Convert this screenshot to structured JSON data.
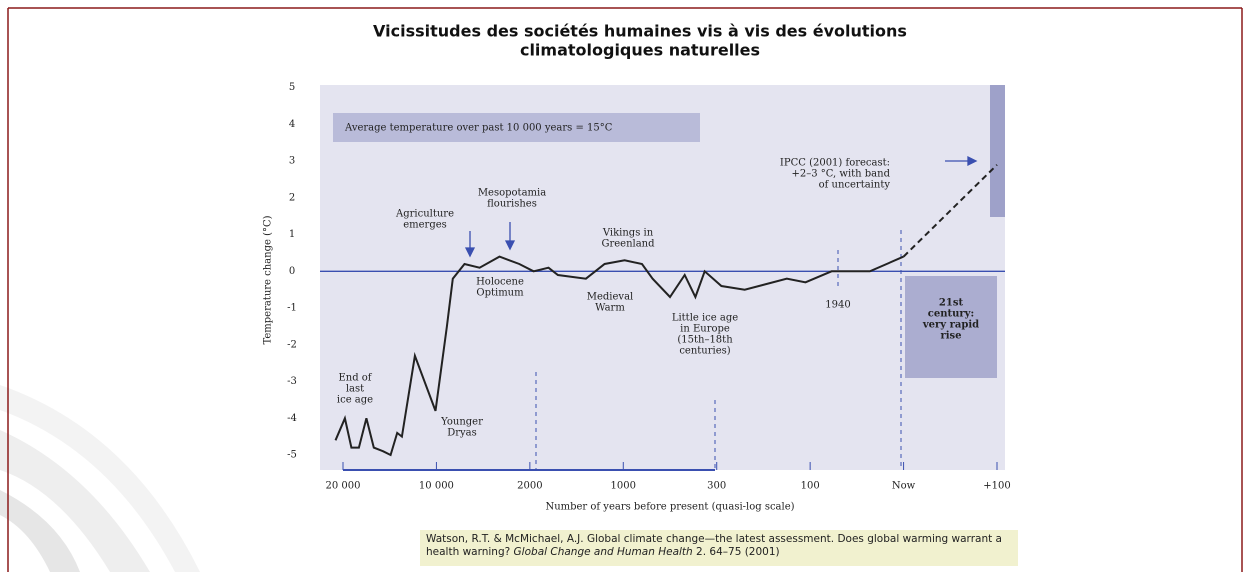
{
  "chart_data": {
    "type": "line",
    "title": [
      "Vicissitudes des sociétés humaines vis à vis des évolutions",
      "climatologiques naturelles"
    ],
    "y_label": "Temperature change (°C)",
    "x_label": "Number of years before present (quasi-log scale)",
    "xticks": [
      {
        "value": 20000,
        "label": "20 000"
      },
      {
        "value": 10000,
        "label": "10 000"
      },
      2000,
      1000,
      300,
      100,
      {
        "value": 0,
        "label": "Now"
      },
      {
        "value": -100,
        "label": "+100"
      }
    ],
    "ylim": [
      -5.3,
      5.1
    ],
    "yticks": [
      -5,
      -4,
      -3,
      -2,
      -1,
      0,
      1,
      2,
      3,
      4,
      5
    ],
    "series": [
      {
        "color": "#222222",
        "dashed": false,
        "x": [
          20800,
          19800,
          19100,
          18300,
          17500,
          16700,
          15700,
          14900,
          14200,
          13700,
          12300,
          10100,
          9100,
          8600,
          7600,
          6300,
          4600,
          2900,
          1960,
          1800,
          1700,
          1400,
          1200,
          990,
          860,
          780,
          650,
          540,
          460,
          390,
          290,
          240,
          150,
          110,
          77,
          36,
          0
        ],
        "values": [
          -4.6,
          -4.0,
          -4.8,
          -4.8,
          -4.0,
          -4.8,
          -4.9,
          -5.0,
          -4.4,
          -4.5,
          -2.3,
          -3.8,
          -1.5,
          -0.2,
          0.2,
          0.1,
          0.4,
          0.2,
          0,
          0.1,
          -0.1,
          -0.2,
          0.2,
          0.3,
          0.2,
          -0.2,
          -0.7,
          -0.1,
          -0.7,
          0,
          -0.4,
          -0.5,
          -0.2,
          -0.3,
          0,
          0,
          0.4
        ]
      },
      {
        "color": "#222222",
        "dashed": true,
        "x": [
          0,
          -100
        ],
        "values": [
          0.4,
          2.9
        ]
      }
    ],
    "annotations": [
      [
        "End of",
        "last",
        "ice age"
      ],
      [
        "Younger",
        "Dryas"
      ],
      [
        "Agriculture",
        "emerges"
      ],
      [
        "Mesopotamia",
        "flourishes"
      ],
      [
        "Holocene",
        "Optimum"
      ],
      [
        "Vikings in",
        "Greenland"
      ],
      [
        "Medieval",
        "Warm"
      ],
      [
        "Little ice age",
        "in Europe",
        "(15th–18th",
        "centuries)"
      ],
      [
        "1940"
      ],
      [
        "IPCC (2001) forecast:",
        "+2–3 °C, with band",
        "of uncertainty"
      ],
      [
        "21st",
        "century:",
        "very rapid",
        "rise"
      ],
      [
        "Average temperature over past 10 000 years = 15°C"
      ]
    ],
    "citation": {
      "text": "Watson, R.T. & McMichael, A.J. Global climate change—the latest assessment. Does global warming warrant a health warning? ",
      "journal": "Global Change and Human Health",
      "ref": " 2. 64–75 (2001)"
    }
  }
}
